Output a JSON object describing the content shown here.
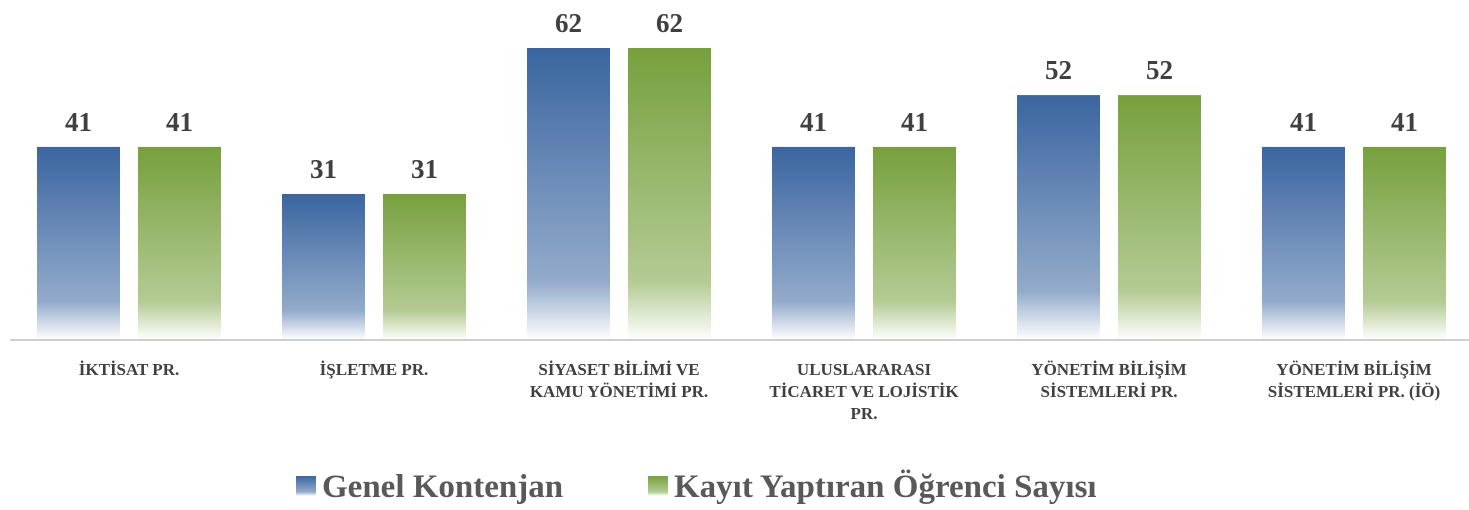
{
  "chart_data": {
    "type": "bar",
    "categories": [
      "İKTİSAT PR.",
      "İŞLETME PR.",
      "SİYASET BİLİMİ VE KAMU YÖNETİMİ PR.",
      "ULUSLARARASI TİCARET VE LOJİSTİK PR.",
      "YÖNETİM BİLİŞİM SİSTEMLERİ PR.",
      "YÖNETİM BİLİŞİM SİSTEMLERİ PR. (İÖ)"
    ],
    "series": [
      {
        "name": "Genel Kontenjan",
        "color": "#3a65a0",
        "values": [
          41,
          31,
          62,
          41,
          52,
          41
        ]
      },
      {
        "name": "Kayıt Yaptıran Öğrenci Sayısı",
        "color": "#76a03c",
        "values": [
          41,
          31,
          62,
          41,
          52,
          41
        ]
      }
    ],
    "ylim": [
      0,
      62
    ]
  }
}
